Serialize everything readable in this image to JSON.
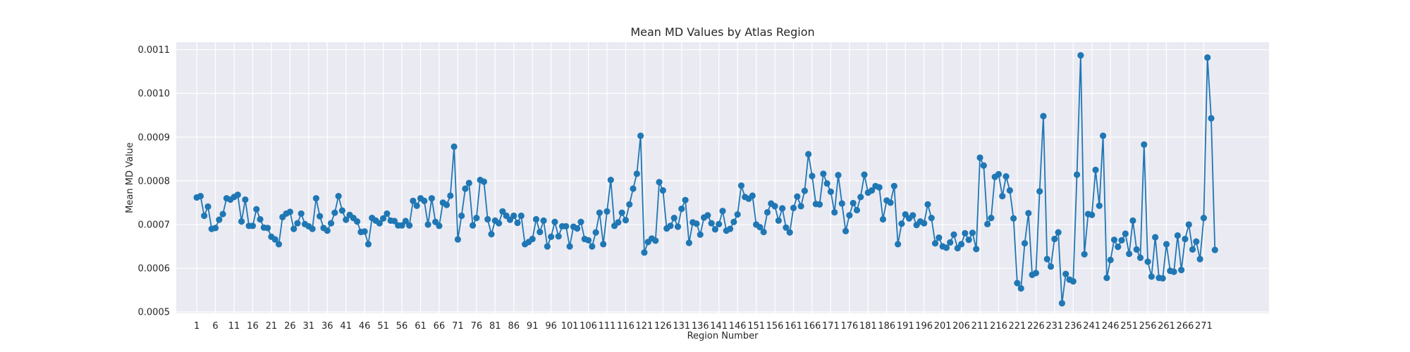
{
  "chart_data": {
    "type": "line",
    "title": "Mean MD Values by Atlas Region",
    "xlabel": "Region Number",
    "ylabel": "Mean MD Value",
    "x_tick_labels": [
      "1",
      "6",
      "11",
      "16",
      "21",
      "26",
      "31",
      "36",
      "41",
      "46",
      "51",
      "56",
      "61",
      "66",
      "71",
      "76",
      "81",
      "86",
      "91",
      "96",
      "101",
      "106",
      "111",
      "116",
      "121",
      "126",
      "131",
      "136",
      "141",
      "146",
      "151",
      "156",
      "161",
      "166",
      "171",
      "176",
      "181",
      "186",
      "191",
      "196",
      "201",
      "206",
      "211",
      "216",
      "221",
      "226",
      "231",
      "236",
      "241",
      "246",
      "251",
      "256",
      "261",
      "266",
      "271"
    ],
    "y_tick_labels": [
      "0.0005",
      "0.0006",
      "0.0007",
      "0.0008",
      "0.0009",
      "0.0010",
      "0.0011"
    ],
    "ylim": [
      0.000497,
      0.001117
    ],
    "xlim": [
      -5.5,
      287.5
    ],
    "grid": true,
    "marker": "circle",
    "series": [
      {
        "color": "#1f77b4",
        "values": [
          0.000762,
          0.000765,
          0.00072,
          0.000741,
          0.00069,
          0.000692,
          0.000711,
          0.000724,
          0.00076,
          0.000757,
          0.000763,
          0.000768,
          0.000707,
          0.000757,
          0.000697,
          0.000697,
          0.000735,
          0.000712,
          0.000693,
          0.000692,
          0.000672,
          0.000666,
          0.000655,
          0.000717,
          0.000725,
          0.000729,
          0.00069,
          0.000703,
          0.000725,
          0.000701,
          0.000696,
          0.00069,
          0.00076,
          0.000719,
          0.000692,
          0.000686,
          0.000703,
          0.000727,
          0.000765,
          0.000732,
          0.000711,
          0.000722,
          0.000715,
          0.000707,
          0.000683,
          0.000684,
          0.000655,
          0.000715,
          0.000709,
          0.000703,
          0.000714,
          0.000725,
          0.000709,
          0.000708,
          0.000698,
          0.000698,
          0.000708,
          0.000698,
          0.000754,
          0.000743,
          0.00076,
          0.000754,
          0.0007,
          0.00076,
          0.000706,
          0.000697,
          0.00075,
          0.000745,
          0.000766,
          0.000878,
          0.000666,
          0.00072,
          0.000782,
          0.000795,
          0.000698,
          0.000715,
          0.000802,
          0.000798,
          0.000712,
          0.000678,
          0.000709,
          0.000703,
          0.00073,
          0.00072,
          0.000711,
          0.00072,
          0.000704,
          0.00072,
          0.000655,
          0.00066,
          0.000667,
          0.000712,
          0.000683,
          0.000709,
          0.00065,
          0.000672,
          0.000706,
          0.000673,
          0.000696,
          0.000696,
          0.00065,
          0.000695,
          0.000691,
          0.000706,
          0.000667,
          0.000664,
          0.00065,
          0.000682,
          0.000727,
          0.000655,
          0.00073,
          0.000802,
          0.000697,
          0.000705,
          0.000727,
          0.00071,
          0.000746,
          0.000782,
          0.000816,
          0.000903,
          0.000636,
          0.00066,
          0.000668,
          0.000663,
          0.000797,
          0.000778,
          0.000691,
          0.000697,
          0.000715,
          0.000695,
          0.000736,
          0.000756,
          0.000658,
          0.000705,
          0.000702,
          0.000677,
          0.000716,
          0.000721,
          0.000703,
          0.000689,
          0.000701,
          0.000731,
          0.000686,
          0.00069,
          0.000706,
          0.000723,
          0.000789,
          0.000763,
          0.000759,
          0.000766,
          0.0007,
          0.000694,
          0.000683,
          0.000728,
          0.000748,
          0.000742,
          0.000709,
          0.000737,
          0.000693,
          0.000682,
          0.000738,
          0.000764,
          0.000742,
          0.000777,
          0.000861,
          0.000811,
          0.000747,
          0.000746,
          0.000816,
          0.000794,
          0.000775,
          0.000728,
          0.000813,
          0.000748,
          0.000685,
          0.000721,
          0.000749,
          0.000733,
          0.000763,
          0.000814,
          0.000773,
          0.000778,
          0.000788,
          0.000785,
          0.000712,
          0.000755,
          0.00075,
          0.000788,
          0.000655,
          0.000702,
          0.000723,
          0.000714,
          0.000721,
          0.000699,
          0.000707,
          0.000703,
          0.000746,
          0.000715,
          0.000657,
          0.00067,
          0.00065,
          0.000647,
          0.000659,
          0.000677,
          0.000646,
          0.000655,
          0.00068,
          0.000665,
          0.000681,
          0.000644,
          0.000853,
          0.000835,
          0.000701,
          0.000715,
          0.000809,
          0.000815,
          0.000765,
          0.00081,
          0.000778,
          0.000714,
          0.000566,
          0.000554,
          0.000657,
          0.000726,
          0.000585,
          0.000589,
          0.000776,
          0.000948,
          0.000621,
          0.000604,
          0.000667,
          0.000682,
          0.00052,
          0.000587,
          0.000574,
          0.00057,
          0.000814,
          0.001087,
          0.000632,
          0.000724,
          0.000722,
          0.000825,
          0.000743,
          0.000903,
          0.000578,
          0.000619,
          0.000665,
          0.000649,
          0.000664,
          0.000679,
          0.000633,
          0.000709,
          0.000643,
          0.000624,
          0.000883,
          0.000615,
          0.000581,
          0.000671,
          0.000578,
          0.000577,
          0.000655,
          0.000594,
          0.000592,
          0.000675,
          0.000596,
          0.000667,
          0.0007,
          0.000643,
          0.000661,
          0.000621,
          0.000715,
          0.001082,
          0.000943,
          0.000642
        ]
      }
    ]
  },
  "colors": {
    "plot_bg": "#eaeaf2",
    "grid": "#ffffff",
    "line": "#1f77b4",
    "text": "#262626"
  }
}
